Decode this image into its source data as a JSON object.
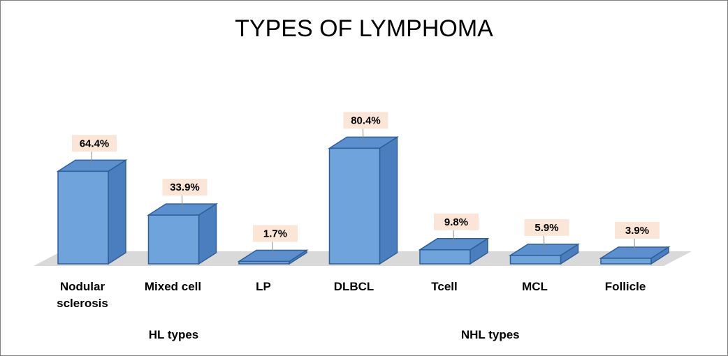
{
  "chart_data": {
    "type": "bar",
    "title": "TYPES OF LYMPHOMA",
    "categories": [
      "Nodular sclerosis",
      "Mixed cell",
      "LP",
      "DLBCL",
      "Tcell",
      "MCL",
      "Follicle"
    ],
    "category_lines": [
      [
        "Nodular",
        "sclerosis"
      ],
      [
        "Mixed cell"
      ],
      [
        "LP"
      ],
      [
        "DLBCL"
      ],
      [
        "Tcell"
      ],
      [
        "MCL"
      ],
      [
        "Follicle"
      ]
    ],
    "values": [
      64.4,
      33.9,
      1.7,
      80.4,
      9.8,
      5.9,
      3.9
    ],
    "data_labels": [
      "64.4%",
      "33.9%",
      "1.7%",
      "80.4%",
      "9.8%",
      "5.9%",
      "3.9%"
    ],
    "groups": [
      {
        "label": "HL types",
        "categories": [
          "Nodular sclerosis",
          "Mixed cell",
          "LP"
        ]
      },
      {
        "label": "NHL types",
        "categories": [
          "DLBCL",
          "Tcell",
          "MCL",
          "Follicle"
        ]
      }
    ],
    "ylim": [
      0,
      100
    ],
    "grid": false,
    "style": "3d-column",
    "colors": {
      "bar_front": "#6fa3dc",
      "bar_side": "#4a7ebf",
      "bar_top": "#5b8fce",
      "bar_edge": "#2f5f96",
      "floor": "#d9d9d9",
      "label_box": "#fbe5d6"
    }
  }
}
